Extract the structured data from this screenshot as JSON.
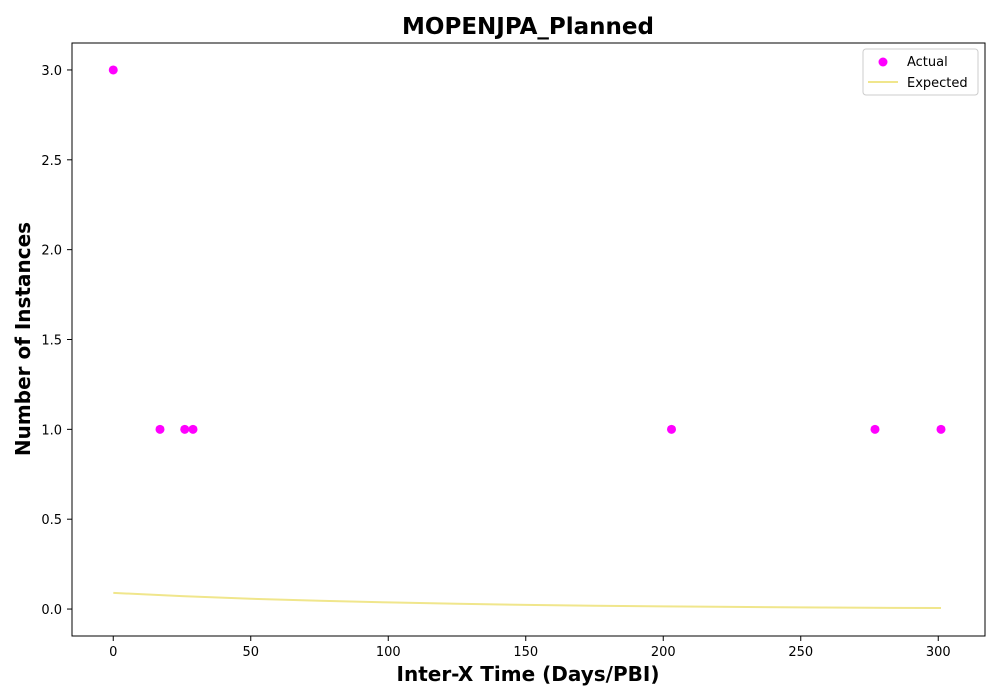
{
  "chart_data": {
    "type": "scatter",
    "title": "MOPENJPA_Planned",
    "xlabel": "Inter-X Time (Days/PBI)",
    "ylabel": "Number of Instances",
    "xlim": [
      -15,
      317
    ],
    "ylim": [
      -0.15,
      3.15
    ],
    "xticks": [
      0,
      50,
      100,
      150,
      200,
      250,
      300
    ],
    "xtick_labels": [
      "0",
      "50",
      "100",
      "150",
      "200",
      "250",
      "300"
    ],
    "yticks": [
      0.0,
      0.5,
      1.0,
      1.5,
      2.0,
      2.5,
      3.0
    ],
    "ytick_labels": [
      "0.0",
      "0.5",
      "1.0",
      "1.5",
      "2.0",
      "2.5",
      "3.0"
    ],
    "grid": false,
    "legend": "top-right",
    "series": [
      {
        "name": "Actual",
        "kind": "scatter",
        "color": "#ff00ff",
        "x": [
          0,
          17,
          26,
          29,
          203,
          277,
          301
        ],
        "y": [
          3,
          1,
          1,
          1,
          1,
          1,
          1
        ]
      },
      {
        "name": "Expected",
        "kind": "line",
        "color": "#f0e68c",
        "x": [
          0,
          25,
          50,
          75,
          100,
          125,
          150,
          175,
          200,
          225,
          250,
          275,
          301
        ],
        "y": [
          0.09,
          0.072,
          0.057,
          0.046,
          0.037,
          0.029,
          0.023,
          0.018,
          0.015,
          0.012,
          0.009,
          0.007,
          0.006
        ]
      }
    ]
  }
}
